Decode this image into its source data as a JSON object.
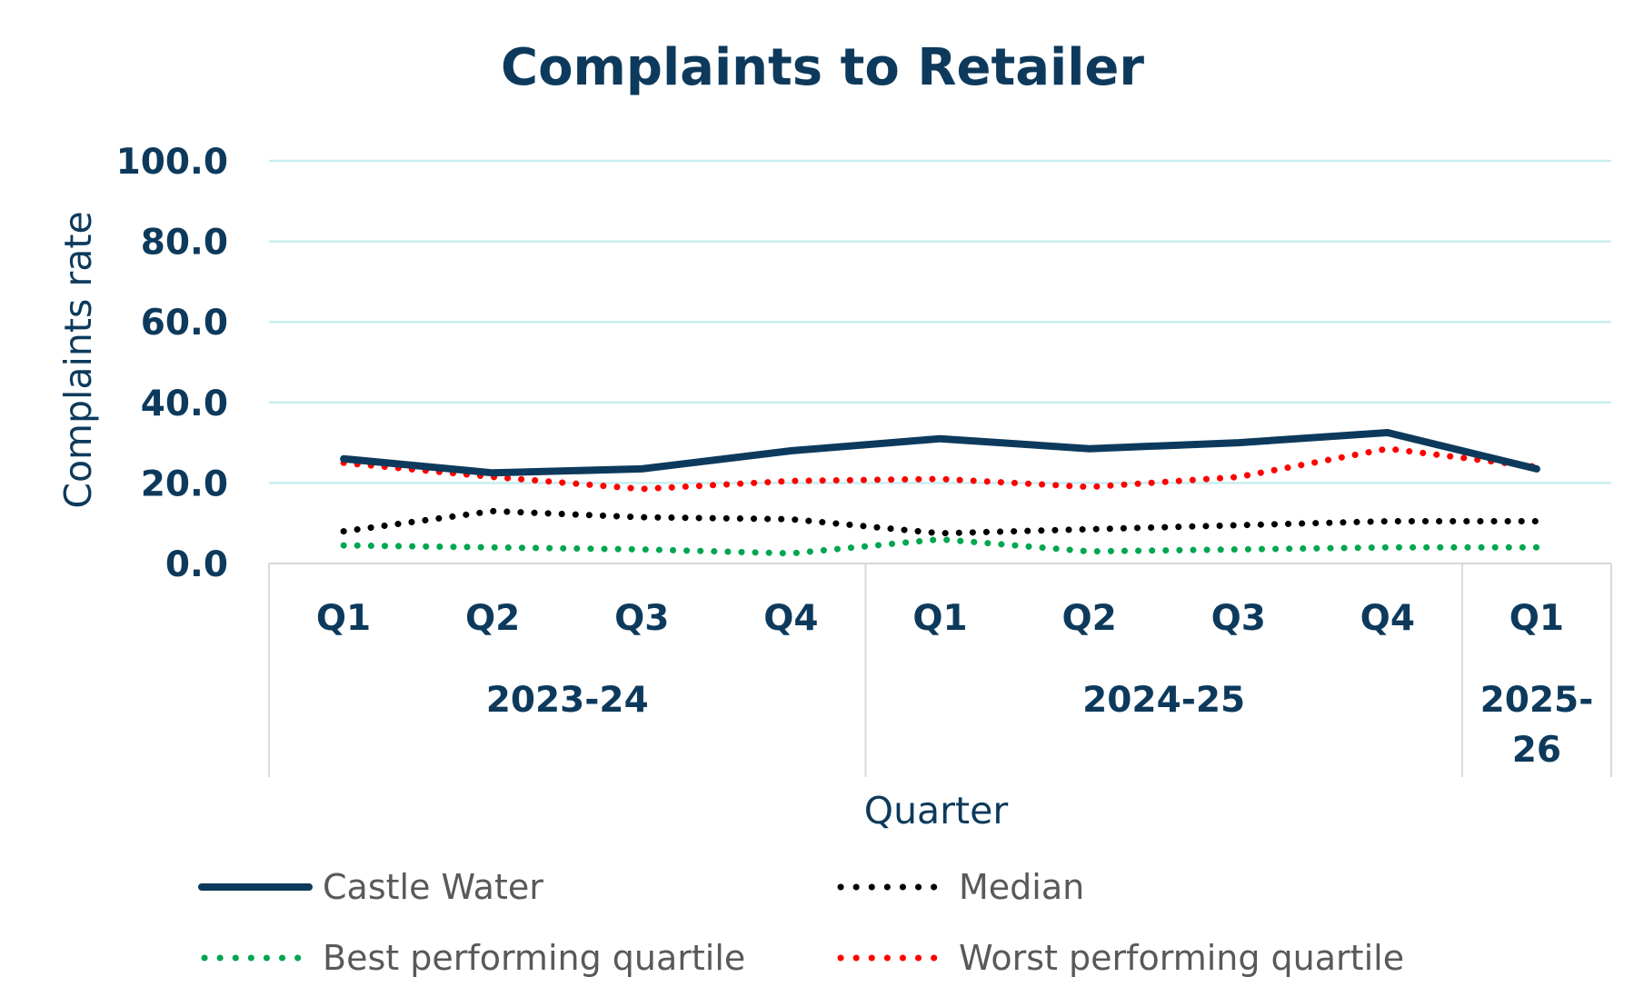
{
  "chart_data": {
    "type": "line",
    "title": "Complaints to Retailer",
    "xlabel": "Quarter",
    "ylabel": "Complaints rate",
    "ylim": [
      0,
      100
    ],
    "yticks": [
      "0.0",
      "20.0",
      "40.0",
      "60.0",
      "80.0",
      "100.0"
    ],
    "grid": true,
    "legend_position": "bottom",
    "categories": [
      "Q1",
      "Q2",
      "Q3",
      "Q4",
      "Q1",
      "Q2",
      "Q3",
      "Q4",
      "Q1"
    ],
    "groups": [
      {
        "label": "2023-24",
        "lines": [
          "2023-24"
        ],
        "count": 4
      },
      {
        "label": "2024-25",
        "lines": [
          "2024-25"
        ],
        "count": 4
      },
      {
        "label": "2025-26",
        "lines": [
          "2025-",
          "26"
        ],
        "count": 1
      }
    ],
    "series": [
      {
        "name": "Castle Water",
        "color": "#0d3a5c",
        "style": "solid",
        "values": [
          26.0,
          22.5,
          23.5,
          28.0,
          31.0,
          28.5,
          30.0,
          32.5,
          23.5
        ]
      },
      {
        "name": "Median",
        "color": "#000000",
        "style": "dotted",
        "values": [
          8.0,
          13.0,
          11.5,
          11.0,
          7.5,
          8.5,
          9.5,
          10.5,
          10.5
        ]
      },
      {
        "name": "Best performing quartile",
        "color": "#00a650",
        "style": "dotted",
        "values": [
          4.5,
          4.0,
          3.5,
          2.5,
          6.0,
          3.0,
          3.5,
          4.0,
          4.0
        ]
      },
      {
        "name": "Worst performing quartile",
        "color": "#ff0000",
        "style": "dotted",
        "values": [
          25.0,
          21.5,
          18.5,
          20.5,
          21.0,
          19.0,
          21.5,
          28.5,
          24.0
        ]
      }
    ]
  }
}
